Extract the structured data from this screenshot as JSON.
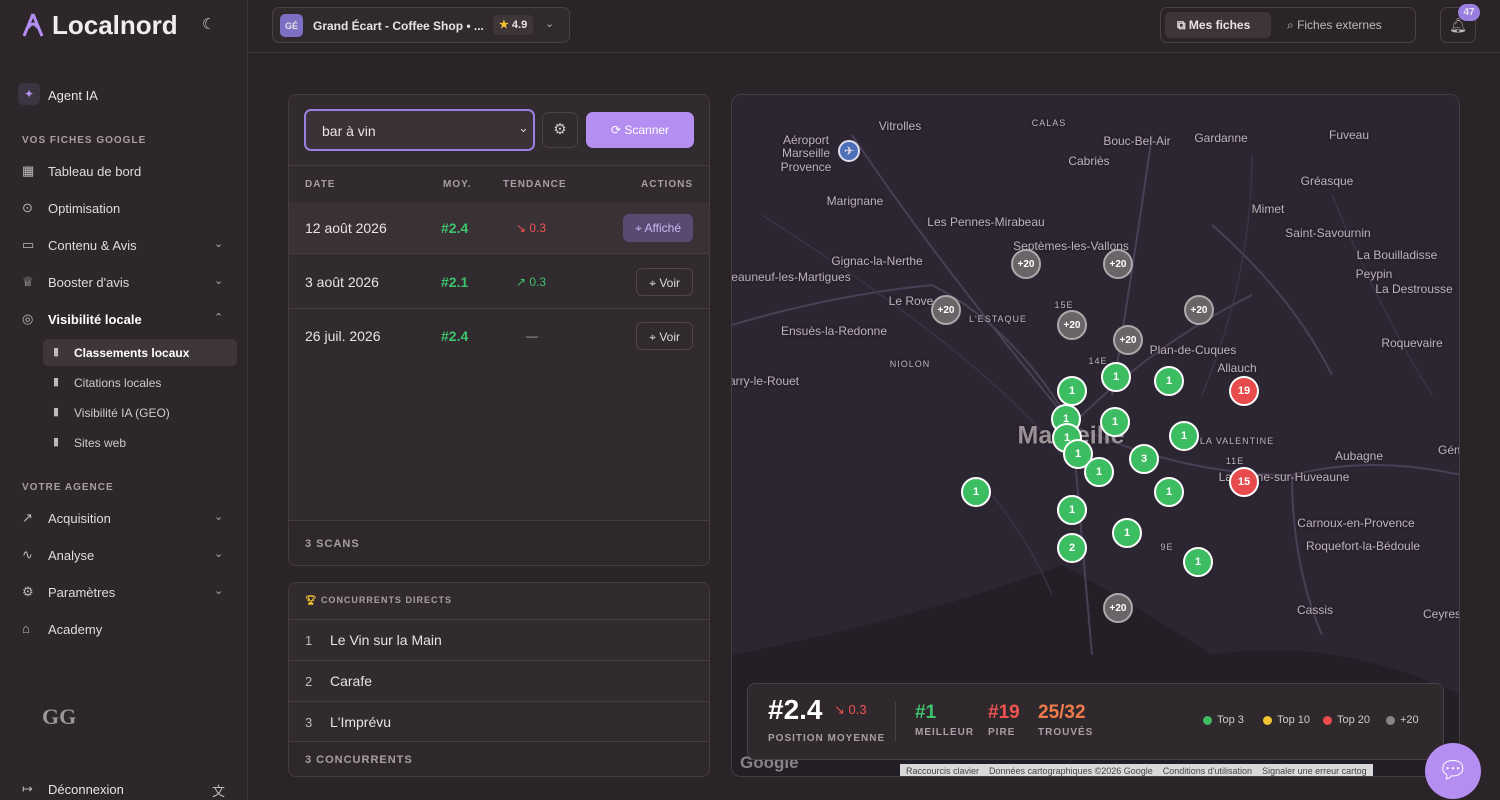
{
  "brand": "Localnord",
  "header": {
    "initials": "GÉ",
    "business": "Grand Écart - Coffee Shop • ...",
    "rating": "4.9",
    "tabs": [
      "Mes fiches",
      "Fiches externes"
    ],
    "notifications": "47"
  },
  "sidebar": {
    "agent": "Agent IA",
    "groups": [
      {
        "title": "VOS FICHES GOOGLE",
        "items": [
          {
            "label": "Tableau de bord"
          },
          {
            "label": "Optimisation"
          },
          {
            "label": "Contenu & Avis",
            "expandable": true
          },
          {
            "label": "Booster d'avis",
            "expandable": true
          },
          {
            "label": "Visibilité locale",
            "expandable": true,
            "open": true,
            "children": [
              "Classements locaux",
              "Citations locales",
              "Visibilité IA (GEO)",
              "Sites web"
            ],
            "active_child": 0
          }
        ]
      },
      {
        "title": "VOTRE AGENCE",
        "items": [
          {
            "label": "Acquisition",
            "expandable": true
          },
          {
            "label": "Analyse",
            "expandable": true
          },
          {
            "label": "Paramètres",
            "expandable": true
          },
          {
            "label": "Academy"
          }
        ]
      }
    ],
    "logo": "GG",
    "logout": "Déconnexion"
  },
  "scans": {
    "keyword": "bar à vin",
    "button": "Scanner",
    "columns": [
      "DATE",
      "MOY.",
      "TENDANCE",
      "ACTIONS"
    ],
    "rows": [
      {
        "date": "12 août 2026",
        "avg": "#2.4",
        "trend": "0.3",
        "direction": "down",
        "action": "Affiché",
        "active": true
      },
      {
        "date": "3 août 2026",
        "avg": "#2.1",
        "trend": "0.3",
        "direction": "up",
        "action": "Voir"
      },
      {
        "date": "26 juil. 2026",
        "avg": "#2.4",
        "trend": "—",
        "direction": "none",
        "action": "Voir"
      }
    ],
    "footer": "3 SCANS"
  },
  "competitors": {
    "title": "CONCURRENTS DIRECTS",
    "items": [
      {
        "rank": "1",
        "name": "Le Vin sur la Main"
      },
      {
        "rank": "2",
        "name": "Carafe"
      },
      {
        "rank": "3",
        "name": "L'Imprévu"
      }
    ],
    "footer": "3 CONCURRENTS"
  },
  "map": {
    "places": [
      "Vitrolles",
      "Aéroport",
      "Marseille",
      "Provence",
      "CALAS",
      "Bouc-Bel-Air",
      "Gardanne",
      "Fuveau",
      "Cabriès",
      "Gréasque",
      "Marignane",
      "Mimet",
      "Les Pennes-Mirabeau",
      "Saint-Savournin",
      "Septèmes-les-Vallons",
      "Gignac-la-Nerthe",
      "La Bouilladisse",
      "Peypin",
      "eauneuf-les-Martigues",
      "La Destrousse",
      "Le Rove",
      "L'ESTAQUE",
      "Ensuès-la-Redonne",
      "Roquevaire",
      "Plan-de-Cuques",
      "NIOLON",
      "Allauch",
      "arry-le-Rouet",
      "Marseille",
      "LA VALENTINE",
      "Gémeno",
      "Aubagne",
      "La Penne-sur-Huveaune",
      "Carnoux-en-Provence",
      "Roquefort-la-Bédoule",
      "Cassis",
      "Ceyres",
      "15E",
      "14E",
      "11E",
      "9E"
    ],
    "markers": [
      {
        "label": "+20",
        "rank": "out"
      },
      {
        "label": "+20",
        "rank": "out"
      },
      {
        "label": "+20",
        "rank": "out"
      },
      {
        "label": "+20",
        "rank": "out"
      },
      {
        "label": "+20",
        "rank": "out"
      },
      {
        "label": "+20",
        "rank": "out"
      },
      {
        "label": "+20",
        "rank": "out"
      },
      {
        "label": "1",
        "rank": "top3"
      },
      {
        "label": "1",
        "rank": "top3"
      },
      {
        "label": "1",
        "rank": "top3"
      },
      {
        "label": "1",
        "rank": "top3"
      },
      {
        "label": "1",
        "rank": "top3"
      },
      {
        "label": "1",
        "rank": "top3"
      },
      {
        "label": "1",
        "rank": "top3"
      },
      {
        "label": "1",
        "rank": "top3"
      },
      {
        "label": "1",
        "rank": "top3"
      },
      {
        "label": "1",
        "rank": "top3"
      },
      {
        "label": "1",
        "rank": "top3"
      },
      {
        "label": "1",
        "rank": "top3"
      },
      {
        "label": "1",
        "rank": "top3"
      },
      {
        "label": "1",
        "rank": "top3"
      },
      {
        "label": "19",
        "rank": "top20"
      },
      {
        "label": "15",
        "rank": "top20"
      },
      {
        "label": "3",
        "rank": "top3"
      },
      {
        "label": "2",
        "rank": "top3"
      }
    ],
    "footer": [
      "Raccourcis clavier",
      "Données cartographiques ©2026 Google",
      "Conditions d'utilisation",
      "Signaler une erreur cartog"
    ],
    "google": "Google"
  },
  "stats": {
    "avg": "#2.4",
    "avg_trend": "0.3",
    "avg_label": "POSITION MOYENNE",
    "best": "#1",
    "best_label": "MEILLEUR",
    "worst": "#19",
    "worst_label": "PIRE",
    "found": "25/32",
    "found_label": "TROUVÉS",
    "legend": [
      {
        "name": "Top 3",
        "color": "#3dbd62"
      },
      {
        "name": "Top 10",
        "color": "#f2c230"
      },
      {
        "name": "Top 20",
        "color": "#e84b4b"
      },
      {
        "name": "+20",
        "color": "#8a8488"
      }
    ]
  }
}
